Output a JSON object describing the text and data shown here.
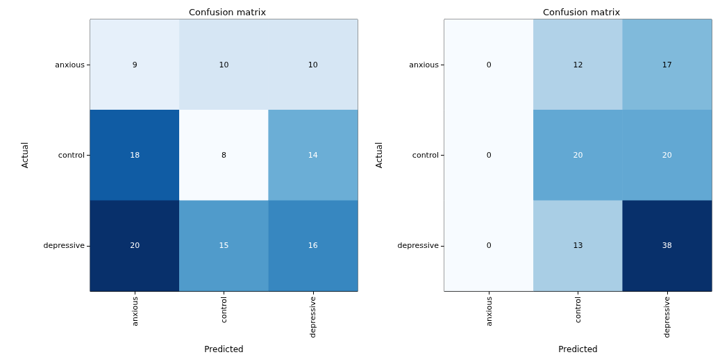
{
  "chart_data": [
    {
      "type": "heatmap",
      "title": "Confusion matrix",
      "xlabel": "Predicted",
      "ylabel": "Actual",
      "categories": [
        "anxious",
        "control",
        "depressive"
      ],
      "y_categories": [
        "anxious",
        "control",
        "depressive"
      ],
      "data_labels": true,
      "cells": [
        [
          9,
          10,
          10
        ],
        [
          18,
          8,
          14
        ],
        [
          20,
          15,
          16
        ]
      ]
    },
    {
      "type": "heatmap",
      "title": "Confusion matrix",
      "xlabel": "Predicted",
      "ylabel": "Actual",
      "categories": [
        "anxious",
        "control",
        "depressive"
      ],
      "y_categories": [
        "anxious",
        "control",
        "depressive"
      ],
      "data_labels": true,
      "cells": [
        [
          0,
          12,
          17
        ],
        [
          0,
          20,
          20
        ],
        [
          0,
          13,
          38
        ]
      ]
    }
  ]
}
